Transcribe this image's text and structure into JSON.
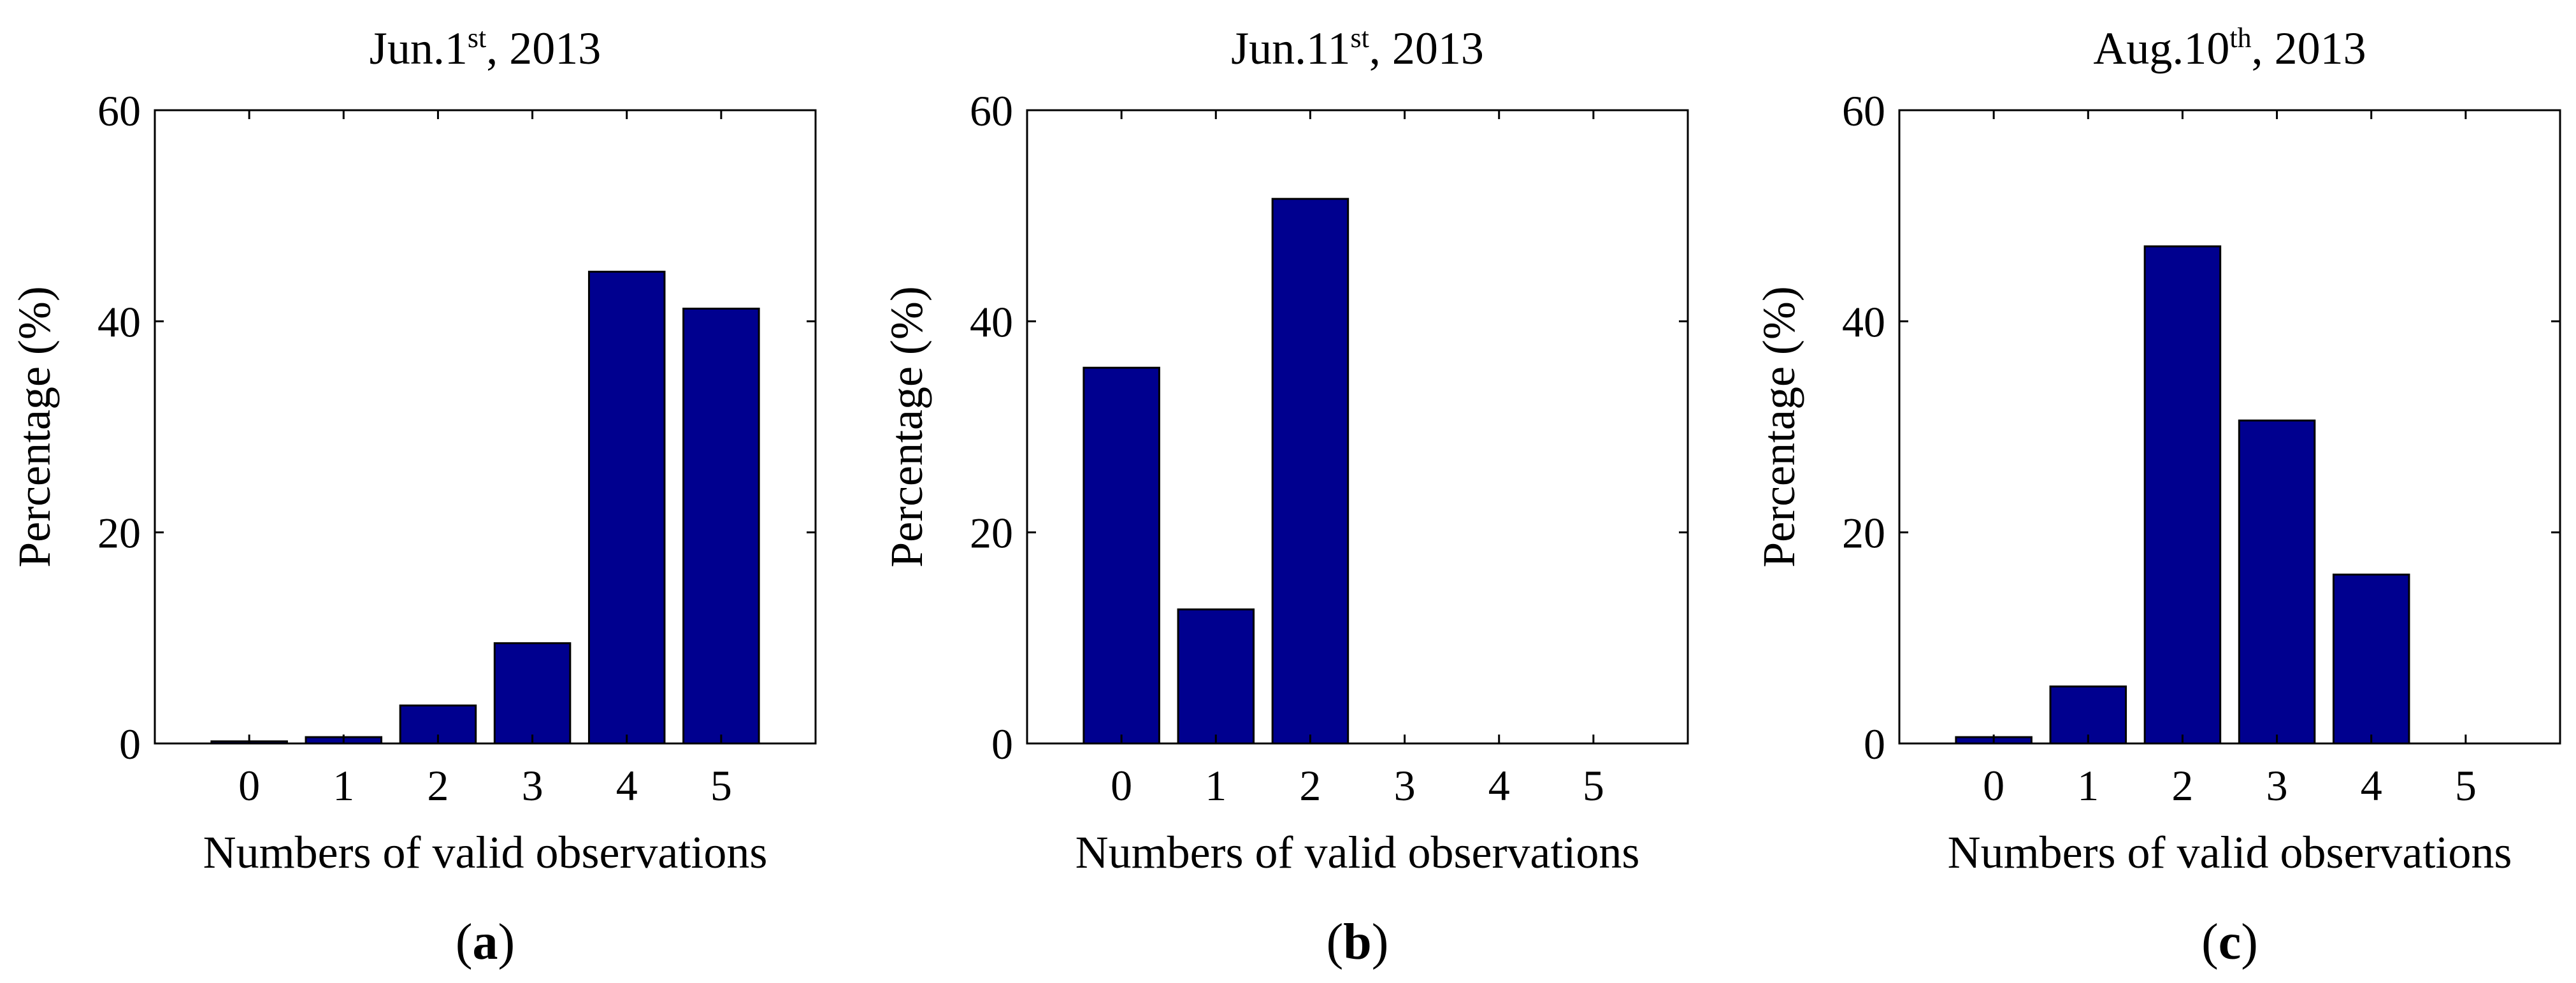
{
  "chart_data": [
    {
      "type": "bar",
      "title": {
        "main": "Jun.1",
        "sup": "st",
        "rest": ", 2013"
      },
      "panel_label": {
        "open": "(",
        "letter": "a",
        "close": ")"
      },
      "categories": [
        "0",
        "1",
        "2",
        "3",
        "4",
        "5"
      ],
      "values": [
        0.2,
        0.6,
        3.6,
        9.5,
        44.7,
        41.2
      ],
      "xlabel": "Numbers of valid observations",
      "ylabel": "Percentage (%)",
      "ylim": [
        0,
        60
      ],
      "yticks": [
        "0",
        "20",
        "40",
        "60"
      ],
      "bar_color": "#00008f",
      "grid": false
    },
    {
      "type": "bar",
      "title": {
        "main": "Jun.11",
        "sup": "st",
        "rest": ", 2013"
      },
      "panel_label": {
        "open": "(",
        "letter": "b",
        "close": ")"
      },
      "categories": [
        "0",
        "1",
        "2",
        "3",
        "4",
        "5"
      ],
      "values": [
        35.6,
        12.7,
        51.6,
        0,
        0,
        0
      ],
      "xlabel": "Numbers of valid observations",
      "ylabel": "Percentage (%)",
      "ylim": [
        0,
        60
      ],
      "yticks": [
        "0",
        "20",
        "40",
        "60"
      ],
      "bar_color": "#00008f",
      "grid": false
    },
    {
      "type": "bar",
      "title": {
        "main": "Aug.10",
        "sup": "th",
        "rest": ", 2013"
      },
      "panel_label": {
        "open": "(",
        "letter": "c",
        "close": ")"
      },
      "categories": [
        "0",
        "1",
        "2",
        "3",
        "4",
        "5"
      ],
      "values": [
        0.6,
        5.4,
        47.1,
        30.6,
        16.0,
        0
      ],
      "xlabel": "Numbers of valid observations",
      "ylabel": "Percentage (%)",
      "ylim": [
        0,
        60
      ],
      "yticks": [
        "0",
        "20",
        "40",
        "60"
      ],
      "bar_color": "#00008f",
      "grid": false
    }
  ]
}
